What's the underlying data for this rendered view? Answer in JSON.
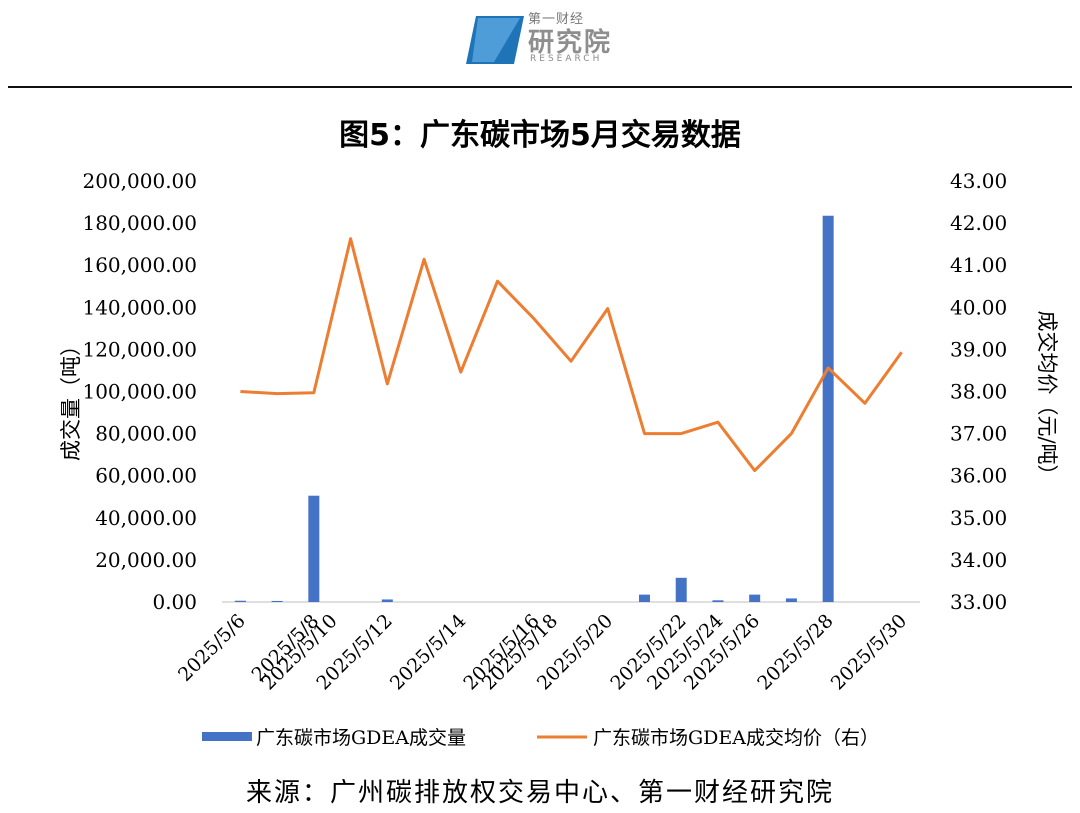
{
  "logo": {
    "top": "第一财经",
    "main": "研究院",
    "sub": "RESEARCH",
    "icon": "diamond-logo-icon",
    "color": "#2e86c1"
  },
  "source": "来源：广州碳排放权交易中心、第一财经研究院",
  "chart_data": {
    "type": "bar",
    "title": "图5：广东碳市场5月交易数据",
    "ylabel": "成交量（吨）",
    "y2label": "成交均价（元/吨）",
    "ylim": [
      0,
      200000
    ],
    "y2lim": [
      33,
      43
    ],
    "y_ticks": [
      "0.00",
      "20,000.00",
      "40,000.00",
      "60,000.00",
      "80,000.00",
      "100,000.00",
      "120,000.00",
      "140,000.00",
      "160,000.00",
      "180,000.00",
      "200,000.00"
    ],
    "y2_ticks": [
      "33.00",
      "34.00",
      "35.00",
      "36.00",
      "37.00",
      "38.00",
      "39.00",
      "40.00",
      "41.00",
      "42.00",
      "43.00"
    ],
    "x_tick_labels": [
      "2025/5/6",
      "2025/5/8",
      "2025/5/10",
      "2025/5/12",
      "2025/5/14",
      "2025/5/16",
      "2025/5/18",
      "2025/5/20",
      "2025/5/22",
      "2025/5/24",
      "2025/5/26",
      "2025/5/28",
      "2025/5/30"
    ],
    "x": [
      "2025/5/6",
      "2025/5/7",
      "2025/5/8",
      "2025/5/9",
      "2025/5/12",
      "2025/5/13",
      "2025/5/14",
      "2025/5/15",
      "2025/5/16",
      "2025/5/19",
      "2025/5/20",
      "2025/5/21",
      "2025/5/22",
      "2025/5/23",
      "2025/5/26",
      "2025/5/27",
      "2025/5/28",
      "2025/5/29",
      "2025/5/30"
    ],
    "series": [
      {
        "name": "广东碳市场GDEA成交量",
        "type": "bar",
        "axis": "left",
        "color": "#4472c4",
        "values": [
          600,
          500,
          50500,
          null,
          1200,
          null,
          null,
          null,
          null,
          null,
          null,
          3500,
          11500,
          800,
          3500,
          1700,
          183500,
          null,
          null
        ]
      },
      {
        "name": "广东碳市场GDEA成交均价（右）",
        "type": "line",
        "axis": "right",
        "color": "#ed7d31",
        "values": [
          38.0,
          37.95,
          37.97,
          41.63,
          38.18,
          41.14,
          38.46,
          40.62,
          39.72,
          38.72,
          39.97,
          37.0,
          37.0,
          37.27,
          36.12,
          37.0,
          38.56,
          37.72,
          38.93
        ]
      }
    ],
    "legend": "bottom",
    "grid": false
  }
}
